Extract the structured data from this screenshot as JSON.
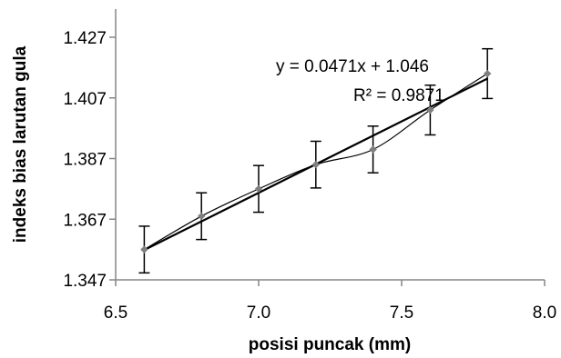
{
  "chart_data": {
    "type": "scatter",
    "xlabel": "posisi puncak (mm)",
    "ylabel": "indeks bias larutan gula",
    "xlim": [
      6.5,
      8.0
    ],
    "ylim": [
      1.347,
      1.427
    ],
    "xticks": [
      "6.5",
      "7.0",
      "7.5",
      "8.0"
    ],
    "yticks": [
      "1.347",
      "1.367",
      "1.387",
      "1.407",
      "1.427"
    ],
    "grid": false,
    "legend": "none",
    "series": [
      {
        "x": [
          6.6,
          6.8,
          7.0,
          7.2,
          7.4,
          7.6,
          7.8
        ],
        "y": [
          1.357,
          1.368,
          1.377,
          1.385,
          1.39,
          1.403,
          1.415
        ],
        "error": [
          0.0077,
          0.0077,
          0.0077,
          0.0077,
          0.0077,
          0.0082,
          0.0082
        ],
        "color": "#7f7f7f",
        "line": "smooth"
      }
    ],
    "trendline": {
      "slope": 0.0471,
      "intercept": 1.046,
      "color": "#000000"
    },
    "annotations": {
      "equation": "y = 0.0471x + 1.046",
      "r2": "R² = 0.9871"
    }
  }
}
